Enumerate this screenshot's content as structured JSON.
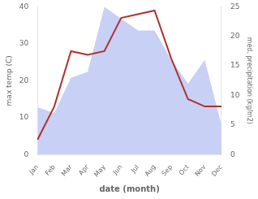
{
  "chart_data": {
    "type": "line",
    "x_label": "date (month)",
    "y_label": "max temp (C)",
    "y2_label": "med. precipitation (kg/m2)",
    "categories": [
      "Jan",
      "Feb",
      "Mar",
      "Apr",
      "May",
      "Jun",
      "Jul",
      "Aug",
      "Sep",
      "Oct",
      "Nov",
      "Dec"
    ],
    "series": [
      {
        "type": "area",
        "axis": "y2",
        "color": "#c8d0f5",
        "values": [
          8,
          7,
          13,
          14,
          25,
          23,
          21,
          21,
          16,
          12,
          16,
          5
        ]
      },
      {
        "type": "line",
        "color": "#b03030",
        "values": [
          4,
          13,
          28,
          27,
          28,
          37,
          38,
          39,
          26,
          15,
          13,
          13
        ]
      }
    ],
    "ylim": [
      0,
      40
    ],
    "yticks": [
      0,
      10,
      20,
      30,
      40
    ],
    "y2lim": [
      0,
      25
    ],
    "y2ticks": [
      0,
      5,
      10,
      15,
      20,
      25
    ],
    "grid": false
  }
}
